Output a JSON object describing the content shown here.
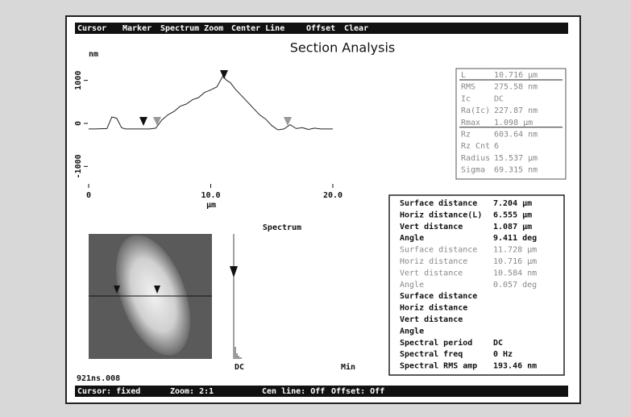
{
  "header": {
    "title": "Section Analysis"
  },
  "menu": [
    "Cursor",
    "Marker",
    "Spectrum Zoom",
    "Center Line",
    "Offset",
    "Clear"
  ],
  "profile": {
    "y_unit": "nm",
    "x_unit": "µm",
    "xlim": [
      0,
      20
    ],
    "ylim": [
      -1500,
      1500
    ],
    "xticks": [
      0,
      {
        "value": 10,
        "label": "10.0"
      },
      {
        "value": 20,
        "label": "20.0"
      }
    ],
    "yticks": [
      1000,
      0,
      -1000
    ],
    "x": [
      0,
      0.5,
      1.5,
      1.9,
      2.3,
      2.7,
      3.0,
      4.0,
      5.0,
      5.5,
      6.0,
      6.5,
      7.0,
      7.5,
      8.0,
      8.5,
      9.0,
      9.5,
      10.0,
      10.5,
      11.0,
      11.3,
      11.6,
      12.0,
      12.5,
      13.0,
      13.5,
      14.0,
      14.5,
      15.0,
      15.5,
      16.0,
      16.5,
      17.0,
      17.5,
      18.0,
      18.5,
      19.0,
      19.5,
      20.0
    ],
    "y": [
      -130,
      -130,
      -120,
      150,
      120,
      -100,
      -130,
      -130,
      -130,
      -110,
      80,
      200,
      280,
      400,
      450,
      550,
      600,
      720,
      780,
      850,
      1100,
      1000,
      950,
      800,
      650,
      500,
      350,
      200,
      100,
      -50,
      -150,
      -130,
      -30,
      -120,
      -100,
      -140,
      -110,
      -130,
      -130,
      -130
    ]
  },
  "cursor_info": [
    {
      "label": "L",
      "value": "10.716 µm"
    },
    {
      "label": "RMS",
      "value": "275.58 nm"
    },
    {
      "label": "Ic",
      "value": "DC"
    },
    {
      "label": "Ra(Ic)",
      "value": "227.87 nm"
    },
    {
      "label": "Rmax",
      "value": "1.098 µm"
    },
    {
      "label": "Rz",
      "value": "603.64 nm"
    },
    {
      "label": "Rz Cnt",
      "value": "6"
    },
    {
      "label": "Radius",
      "value": "15.537 µm"
    },
    {
      "label": "Sigma",
      "value": "69.315 nm"
    }
  ],
  "measurements": [
    {
      "label": "Surface distance",
      "value": "7.204 µm"
    },
    {
      "label": "Horiz distance(L)",
      "value": "6.555 µm"
    },
    {
      "label": "Vert distance",
      "value": "1.087 µm"
    },
    {
      "label": "Angle",
      "value": "9.411 deg"
    },
    {
      "label": "Surface distance",
      "value": "11.728 µm"
    },
    {
      "label": "Horiz distance",
      "value": "10.716 µm"
    },
    {
      "label": "Vert distance",
      "value": "10.584 nm"
    },
    {
      "label": "Angle",
      "value": "0.057 deg"
    },
    {
      "label": "Surface distance"
    },
    {
      "label": "Horiz distance"
    },
    {
      "label": "Vert distance"
    },
    {
      "label": "Angle"
    },
    {
      "label": "Spectral period",
      "value": "DC"
    },
    {
      "label": "Spectral freq",
      "value": "0 Hz"
    },
    {
      "label": "Spectral RMS amp",
      "value": "193.46 nm"
    }
  ],
  "spectrum": {
    "title": "Spectrum",
    "left_label": "DC",
    "right_label": "Min"
  },
  "file_name": "921ns.008",
  "status": [
    "Cursor: fixed",
    "Zoom: 2:1",
    "Cen line: Off",
    "Offset: Off"
  ]
}
